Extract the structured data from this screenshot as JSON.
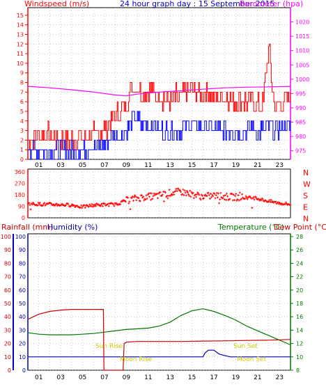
{
  "header": {
    "left_label": "Windspeed (m/s)",
    "title": "24 hour graph day : 15 September 2015",
    "right_label": "Barometer (hpa)"
  },
  "colors": {
    "wind_gust": "#ff0000",
    "wind_avg": "#0000ff",
    "barometer": "#ff00ff",
    "direction": "#ff0000",
    "rainfall": "#cc0000",
    "humidity": "#0000aa",
    "temperature": "#007700",
    "dewpoint": "#cc0000",
    "grid": "#aaaaaa",
    "sun_moon_text": "#cccc00",
    "frame": "#000000"
  },
  "x_ticks": [
    "01",
    "03",
    "05",
    "07",
    "09",
    "11",
    "13",
    "15",
    "17",
    "19",
    "21",
    "23"
  ],
  "panel1": {
    "wind_ticks": [
      "0",
      "1",
      "2",
      "3",
      "4",
      "5",
      "6",
      "7",
      "8",
      "9",
      "10",
      "11",
      "12",
      "13",
      "14",
      "15"
    ],
    "baro_ticks": [
      "975",
      "980",
      "985",
      "990",
      "995",
      "1000",
      "1005",
      "1010",
      "1015",
      "1020"
    ]
  },
  "panel2": {
    "dir_ticks": [
      "0",
      "90",
      "180",
      "270",
      "360"
    ],
    "compass": [
      "N",
      "W",
      "S",
      "E",
      "N"
    ]
  },
  "panel3": {
    "rain_label": "Rainfall (mm)",
    "humidity_label": "Humidity (%)",
    "temp_label": "Temperature (°C)",
    "dew_label": "Dew Point (°C)",
    "left_ticks": [
      "0",
      "10",
      "20",
      "30",
      "40",
      "50",
      "60",
      "70",
      "80",
      "90",
      "100"
    ],
    "right_ticks": [
      "8",
      "10",
      "12",
      "14",
      "16",
      "18",
      "20",
      "22",
      "24",
      "26",
      "28"
    ],
    "sun_rise": "Sun Rise",
    "sun_set": "Sun Set",
    "moon_rise": "Moon Rise",
    "moon_set": "Moon Set"
  },
  "chart_data": [
    {
      "type": "line",
      "xlabel": "",
      "x_range_hours": [
        0,
        24
      ],
      "y_left": {
        "label": "Windspeed (m/s)",
        "range": [
          0,
          15.5
        ]
      },
      "y_right": {
        "label": "Barometer (hpa)",
        "range": [
          972,
          1025
        ]
      },
      "series": [
        {
          "name": "Windspeed (m/s)",
          "role": "gust",
          "hours": [
            0,
            1,
            2,
            3,
            4,
            5,
            6,
            7,
            7.5,
            8,
            8.5,
            9,
            9.5,
            10,
            10.5,
            11,
            11.5,
            12,
            12.5,
            13,
            13.5,
            14,
            14.5,
            15,
            15.5,
            16,
            16.5,
            17,
            17.5,
            18,
            18.5,
            19,
            19.5,
            20,
            20.5,
            21,
            21.5,
            22,
            22.5,
            23,
            23.5,
            24
          ],
          "values": [
            2,
            2.5,
            2.5,
            2,
            2,
            2.5,
            2.5,
            3,
            4,
            4.5,
            5,
            6,
            7.5,
            7.5,
            7,
            7,
            7,
            6.5,
            6.5,
            6,
            6.5,
            6.5,
            7,
            7,
            7,
            7,
            7,
            6.5,
            6.5,
            6.5,
            6.5,
            6,
            6,
            6,
            6.5,
            5.5,
            6,
            11.8,
            5.5,
            5.5,
            6,
            6.5
          ]
        },
        {
          "name": "Windspeed (m/s)",
          "role": "average",
          "hours": [
            0,
            1,
            2,
            3,
            4,
            5,
            6,
            7,
            7.5,
            8,
            8.5,
            9,
            9.5,
            10,
            10.5,
            11,
            11.5,
            12,
            12.5,
            13,
            13.5,
            14,
            14.5,
            15,
            15.5,
            16,
            16.5,
            17,
            17.5,
            18,
            18.5,
            19,
            19.5,
            20,
            20.5,
            21,
            21.5,
            22,
            22.5,
            23,
            23.5,
            24
          ],
          "values": [
            1,
            1,
            1,
            1,
            0.8,
            1,
            1.3,
            1.5,
            2,
            2.5,
            2.5,
            3,
            4,
            4,
            3.5,
            3.5,
            3.5,
            3,
            3,
            3,
            3,
            3,
            3.5,
            3.5,
            3.5,
            3.5,
            3.5,
            3,
            3,
            3,
            3,
            3,
            3,
            3,
            3.5,
            3,
            3,
            3.5,
            3,
            3,
            3.5,
            3.5
          ]
        },
        {
          "name": "Barometer (hpa)",
          "hours": [
            0,
            2,
            4,
            6,
            8,
            9,
            10,
            12,
            14,
            16,
            18,
            20,
            22,
            24
          ],
          "values": [
            997.5,
            997,
            996.3,
            995.5,
            994.5,
            994.2,
            994.8,
            995.5,
            996,
            996.5,
            997,
            997.2,
            997.3,
            997.5
          ]
        }
      ]
    },
    {
      "type": "scatter",
      "xlabel": "",
      "x_range_hours": [
        0,
        24
      ],
      "ylabel": "Wind direction (deg)",
      "ylim": [
        0,
        360
      ],
      "series": [
        {
          "name": "Direction",
          "hours": [
            0,
            2,
            4,
            5,
            6,
            8,
            9,
            10,
            12,
            13,
            14,
            15,
            16,
            17,
            18,
            20,
            21,
            22,
            23,
            24
          ],
          "values": [
            110,
            105,
            100,
            85,
            100,
            105,
            135,
            155,
            175,
            195,
            205,
            185,
            165,
            175,
            165,
            160,
            150,
            130,
            115,
            105
          ]
        }
      ]
    },
    {
      "type": "line",
      "xlabel": "",
      "x_range_hours": [
        0,
        24
      ],
      "y_left": {
        "label": "Rainfall (mm) / Humidity (%)",
        "range": [
          0,
          100
        ]
      },
      "y_right": {
        "label": "Temperature (°C)",
        "range": [
          8,
          28
        ]
      },
      "series": [
        {
          "name": "Rainfall (mm)",
          "axis": "left",
          "hours": [
            0,
            0.5,
            1,
            2,
            3,
            4,
            5,
            6,
            6.9,
            6.95,
            7.0,
            8.7,
            8.8,
            9,
            10,
            12,
            14,
            16,
            18,
            20,
            22,
            24
          ],
          "values": [
            38,
            40,
            42,
            44,
            45,
            45.5,
            45.5,
            45.5,
            45.5,
            0,
            0,
            0,
            20,
            21,
            21.5,
            21.5,
            21.5,
            21.8,
            22,
            22.3,
            22.5,
            23
          ]
        },
        {
          "name": "Humidity (%)",
          "axis": "left",
          "hours": [
            0,
            16,
            16.2,
            16.5,
            17,
            17.5,
            18,
            18.5,
            19,
            24
          ],
          "values": [
            10,
            10,
            13,
            15,
            15,
            12,
            11,
            10,
            10,
            10
          ]
        },
        {
          "name": "Temperature (°C)",
          "axis": "right",
          "hours": [
            0,
            1,
            2,
            3,
            4,
            5,
            6,
            7,
            8,
            9,
            10,
            11,
            12,
            13,
            14,
            15,
            16,
            17,
            18,
            19,
            20,
            21,
            22,
            23,
            24
          ],
          "values": [
            13.6,
            13.4,
            13.3,
            13.3,
            13.3,
            13.4,
            13.5,
            13.7,
            13.9,
            14.1,
            14.2,
            14.3,
            14.6,
            15.2,
            16.2,
            16.9,
            17.2,
            16.8,
            16.2,
            15.5,
            14.6,
            13.9,
            13.2,
            12.5,
            11.8
          ]
        }
      ]
    }
  ]
}
